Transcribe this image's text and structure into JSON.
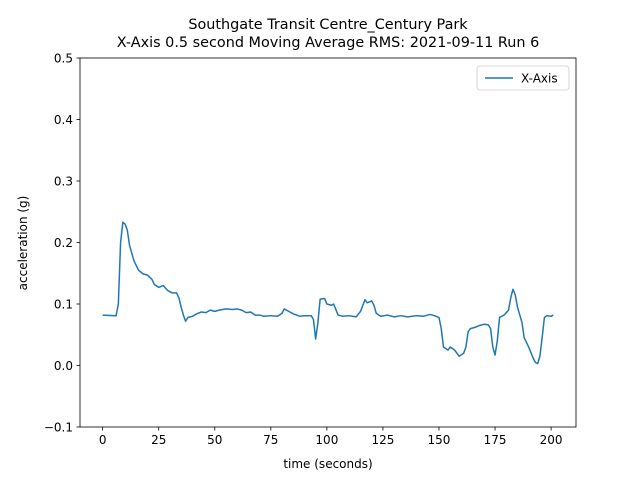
{
  "chart_data": {
    "type": "line",
    "title": "Southgate Transit Centre_Century Park",
    "subtitle": "X-Axis 0.5 second Moving Average RMS: 2021-09-11 Run 6",
    "xlabel": "time (seconds)",
    "ylabel": "acceleration (g)",
    "x": [
      0,
      6,
      7,
      8,
      9,
      10,
      11,
      12,
      14,
      16,
      18,
      20,
      22,
      23,
      25,
      27,
      29,
      31,
      33,
      34,
      35,
      36,
      37,
      38,
      40,
      42,
      44,
      46,
      48,
      50,
      52,
      55,
      58,
      60,
      62,
      64,
      66,
      68,
      70,
      72,
      75,
      78,
      80,
      81,
      83,
      85,
      88,
      90,
      93,
      94,
      95,
      96,
      97,
      99,
      100,
      102,
      103,
      105,
      107,
      110,
      113,
      115,
      117,
      118,
      120,
      121,
      122,
      124,
      127,
      130,
      133,
      136,
      140,
      143,
      146,
      148,
      150,
      151,
      152,
      154,
      155,
      157,
      159,
      161,
      162,
      163,
      164,
      166,
      168,
      170,
      172,
      173,
      174,
      175,
      176,
      177,
      179,
      181,
      182,
      183,
      184,
      185,
      187,
      188,
      190,
      192,
      193,
      194,
      195,
      196,
      197,
      198,
      200,
      201
    ],
    "series": [
      {
        "name": "X-Axis",
        "color": "#1f77b4",
        "values": [
          0.082,
          0.081,
          0.1,
          0.2,
          0.233,
          0.23,
          0.22,
          0.195,
          0.17,
          0.155,
          0.149,
          0.147,
          0.14,
          0.132,
          0.127,
          0.13,
          0.122,
          0.118,
          0.118,
          0.11,
          0.095,
          0.082,
          0.072,
          0.078,
          0.08,
          0.084,
          0.087,
          0.086,
          0.09,
          0.088,
          0.09,
          0.092,
          0.091,
          0.092,
          0.09,
          0.086,
          0.087,
          0.082,
          0.082,
          0.08,
          0.081,
          0.08,
          0.085,
          0.092,
          0.088,
          0.084,
          0.08,
          0.081,
          0.081,
          0.075,
          0.043,
          0.07,
          0.108,
          0.109,
          0.1,
          0.098,
          0.1,
          0.082,
          0.08,
          0.081,
          0.079,
          0.088,
          0.107,
          0.102,
          0.105,
          0.098,
          0.085,
          0.08,
          0.082,
          0.079,
          0.081,
          0.079,
          0.081,
          0.08,
          0.083,
          0.081,
          0.078,
          0.06,
          0.03,
          0.025,
          0.03,
          0.025,
          0.015,
          0.02,
          0.03,
          0.055,
          0.06,
          0.062,
          0.065,
          0.067,
          0.066,
          0.06,
          0.03,
          0.017,
          0.04,
          0.078,
          0.082,
          0.09,
          0.11,
          0.124,
          0.115,
          0.095,
          0.07,
          0.045,
          0.03,
          0.012,
          0.005,
          0.003,
          0.015,
          0.045,
          0.078,
          0.081,
          0.08,
          0.082
        ]
      }
    ],
    "xlim": [
      -10.1,
      211.1
    ],
    "ylim": [
      -0.1,
      0.5
    ],
    "xticks": [
      0,
      25,
      50,
      75,
      100,
      125,
      150,
      175,
      200
    ],
    "yticks": [
      {
        "value": -0.1,
        "label": "−0.1"
      },
      {
        "value": 0,
        "label": "0.0"
      },
      0.1,
      0.2,
      0.3,
      0.4,
      0.5
    ],
    "legend": "upper right",
    "grid": false
  }
}
